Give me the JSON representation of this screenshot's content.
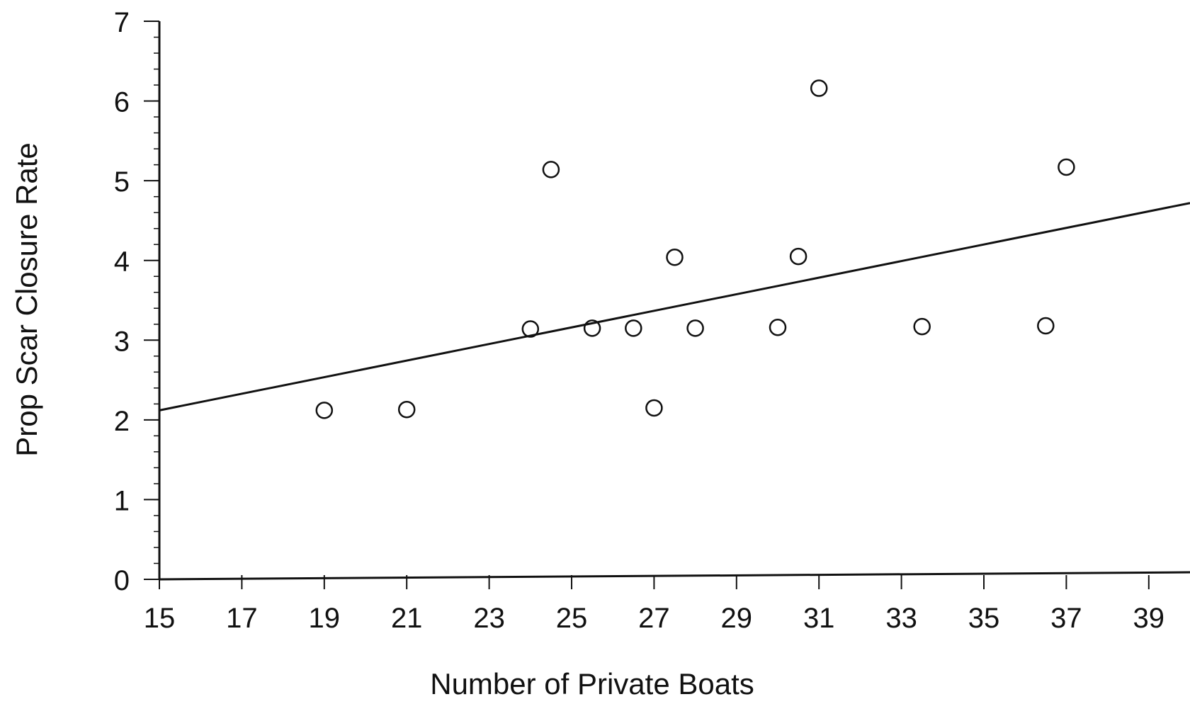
{
  "chart_data": {
    "type": "scatter",
    "title": "",
    "xlabel": "Number of Private Boats",
    "ylabel": "Prop Scar Closure Rate",
    "xlim": [
      15,
      40
    ],
    "ylim": [
      0,
      7
    ],
    "xticks": [
      15,
      17,
      19,
      21,
      23,
      25,
      27,
      29,
      31,
      33,
      35,
      37,
      39
    ],
    "yticks": [
      0,
      1,
      2,
      3,
      4,
      5,
      6,
      7
    ],
    "grid": false,
    "points": [
      {
        "x": 19,
        "y": 2.12
      },
      {
        "x": 21,
        "y": 2.13
      },
      {
        "x": 24,
        "y": 3.14
      },
      {
        "x": 24.5,
        "y": 5.14
      },
      {
        "x": 25.5,
        "y": 3.15
      },
      {
        "x": 26.5,
        "y": 3.15
      },
      {
        "x": 27,
        "y": 2.15
      },
      {
        "x": 27.5,
        "y": 4.04
      },
      {
        "x": 28,
        "y": 3.15
      },
      {
        "x": 30,
        "y": 3.16
      },
      {
        "x": 30.5,
        "y": 4.05
      },
      {
        "x": 31,
        "y": 6.16
      },
      {
        "x": 33.5,
        "y": 3.17
      },
      {
        "x": 36.5,
        "y": 3.18
      },
      {
        "x": 37,
        "y": 5.17
      }
    ],
    "fit_line": {
      "x": [
        15,
        40
      ],
      "y": [
        2.12,
        4.72
      ]
    }
  },
  "colors": {
    "ink": "#111111",
    "background": "#ffffff"
  }
}
